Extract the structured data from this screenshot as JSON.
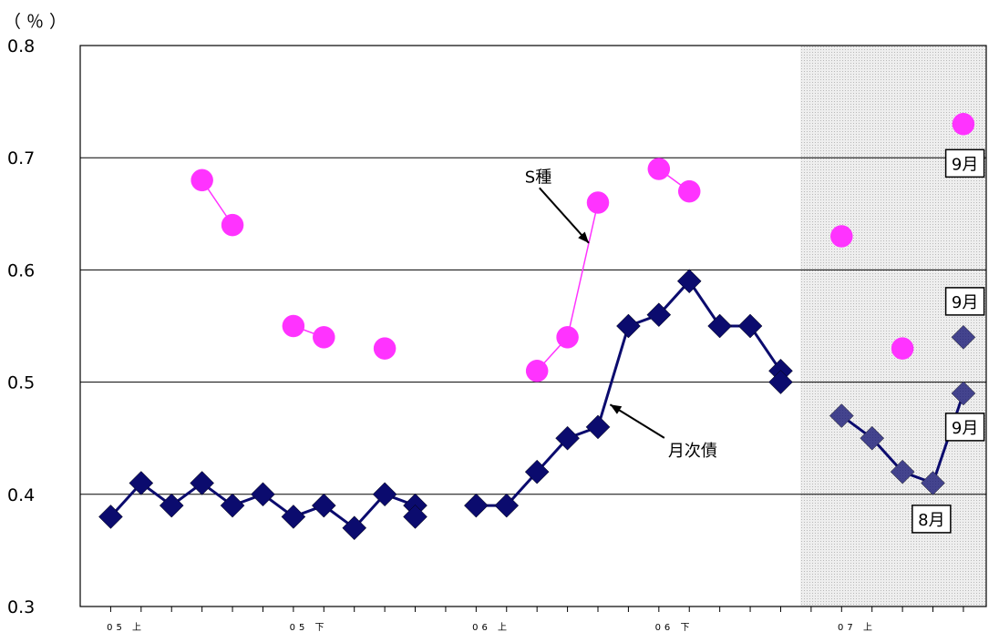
{
  "chart_data": {
    "type": "line",
    "unit_label": "（％）",
    "ylim": [
      0.3,
      0.8
    ],
    "yticks": [
      "0.3",
      "0.4",
      "0.5",
      "0.6",
      "0.7",
      "0.8"
    ],
    "x_range": [
      0,
      29
    ],
    "x_tick_labels": [
      {
        "label": "05 上",
        "x": 1.5
      },
      {
        "label": "05 下",
        "x": 7.5
      },
      {
        "label": "06 上",
        "x": 13.5
      },
      {
        "label": "06 下",
        "x": 19.5
      },
      {
        "label": "07 上",
        "x": 25.5
      }
    ],
    "shaded_region": {
      "x_start": 24,
      "x_end": 29,
      "color": "#e4e4e4"
    },
    "grid": true,
    "series": [
      {
        "name": "月次債",
        "color": "#0b0b6e",
        "marker": "diamond",
        "segments": [
          [
            [
              1,
              0.38
            ],
            [
              2,
              0.41
            ],
            [
              3,
              0.39
            ],
            [
              4,
              0.41
            ],
            [
              5,
              0.39
            ],
            [
              6,
              0.4
            ],
            [
              7,
              0.38
            ],
            [
              8,
              0.39
            ],
            [
              9,
              0.37
            ],
            [
              10,
              0.4
            ],
            [
              11,
              0.39
            ],
            [
              11,
              0.38
            ]
          ],
          [
            [
              13,
              0.39
            ],
            [
              14,
              0.39
            ],
            [
              15,
              0.42
            ],
            [
              16,
              0.45
            ],
            [
              17,
              0.46
            ],
            [
              18,
              0.55
            ],
            [
              19,
              0.56
            ],
            [
              20,
              0.59
            ],
            [
              21,
              0.55
            ],
            [
              22,
              0.55
            ],
            [
              23,
              0.51
            ],
            [
              23,
              0.5
            ]
          ],
          [
            [
              25,
              0.47
            ],
            [
              26,
              0.45
            ],
            [
              27,
              0.42
            ],
            [
              28,
              0.41
            ],
            [
              29,
              0.49
            ]
          ]
        ],
        "extra_points": [
          [
            29,
            0.54
          ]
        ]
      },
      {
        "name": "S種",
        "color": "#ff33ff",
        "marker": "circle",
        "segments": [
          [
            [
              4,
              0.68
            ],
            [
              5,
              0.64
            ]
          ],
          [
            [
              7,
              0.55
            ],
            [
              8,
              0.54
            ]
          ],
          [
            [
              10,
              0.53
            ]
          ],
          [
            [
              15,
              0.51
            ],
            [
              16,
              0.54
            ],
            [
              17,
              0.66
            ]
          ],
          [
            [
              19,
              0.69
            ],
            [
              20,
              0.67
            ]
          ],
          [
            [
              25,
              0.63
            ]
          ],
          [
            [
              27,
              0.53
            ]
          ],
          [
            [
              29,
              0.73
            ]
          ]
        ]
      }
    ],
    "annotations": [
      {
        "text": "S種",
        "x": 14.6,
        "y": 0.678,
        "arrow_to": [
          16.7,
          0.624
        ]
      },
      {
        "text": "月次債",
        "x": 19.3,
        "y": 0.434,
        "arrow_to": [
          17.4,
          0.48
        ]
      }
    ],
    "boxed_labels": [
      {
        "text": "9月",
        "x": 29.05,
        "y": 0.695
      },
      {
        "text": "9月",
        "x": 29.05,
        "y": 0.572
      },
      {
        "text": "9月",
        "x": 29.05,
        "y": 0.46
      },
      {
        "text": "8月",
        "x": 27.95,
        "y": 0.378
      }
    ]
  }
}
